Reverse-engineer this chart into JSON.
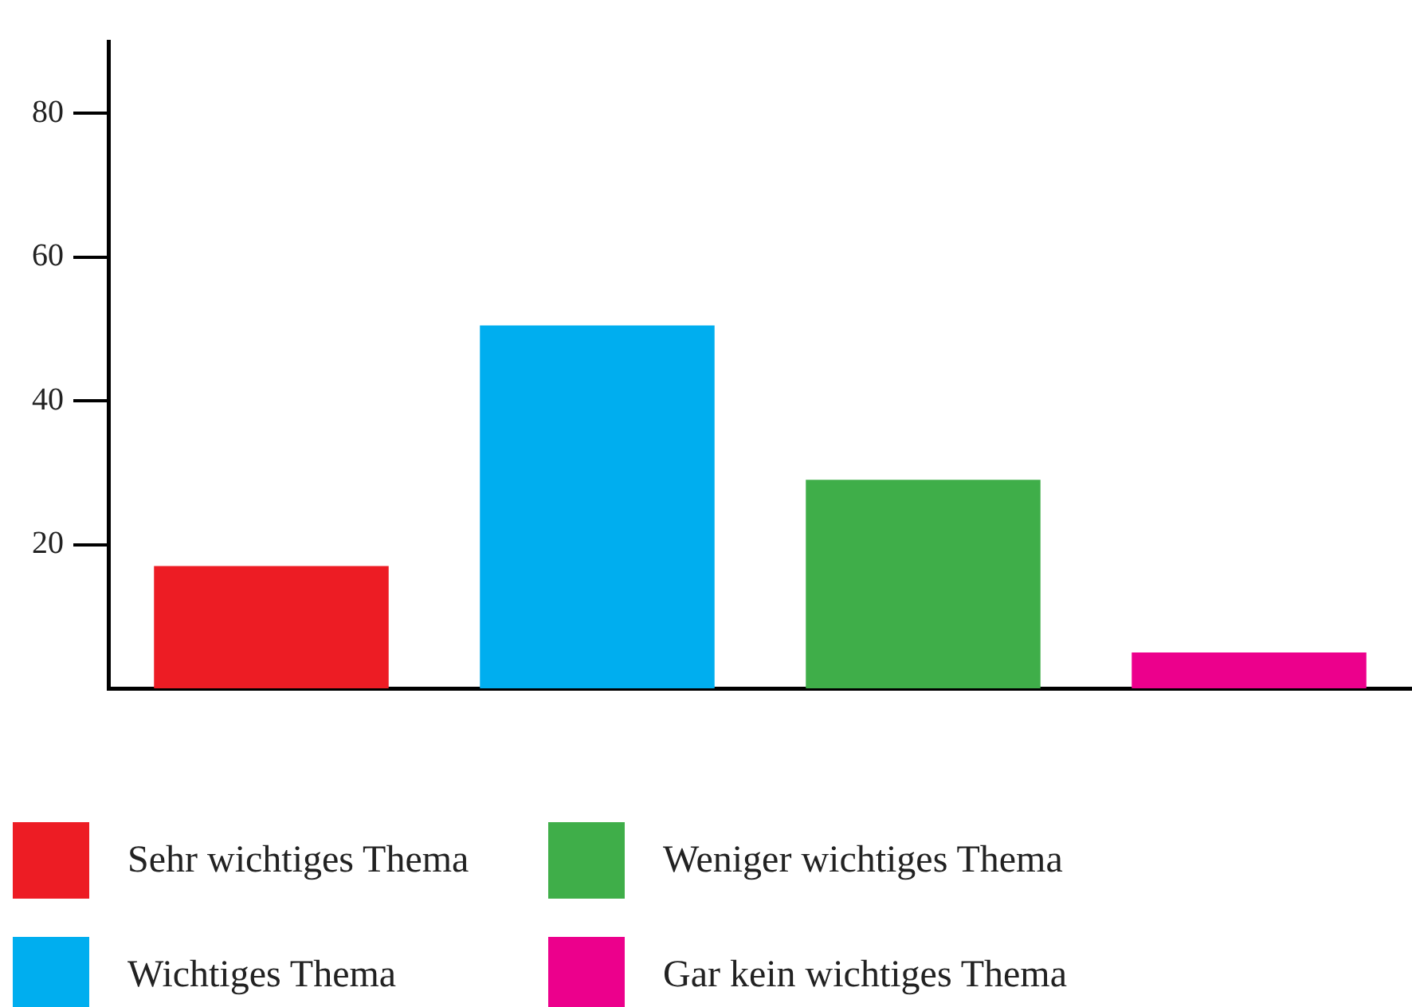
{
  "chart_data": {
    "type": "bar",
    "categories": [
      null,
      null,
      null,
      null
    ],
    "series": [
      {
        "name": "Sehr wichtiges Thema",
        "color": "#ed1c24",
        "values": [
          17,
          null,
          null,
          null
        ]
      },
      {
        "name": "Wichtiges Thema",
        "color": "#00aeef",
        "values": [
          null,
          50.5,
          null,
          null
        ]
      },
      {
        "name": "Weniger wichtiges Thema",
        "color": "#3fae49",
        "values": [
          null,
          null,
          29,
          null
        ]
      },
      {
        "name": "Gar kein wichtiges Thema",
        "color": "#ec008c",
        "values": [
          null,
          null,
          null,
          5
        ]
      }
    ],
    "ylim": [
      0,
      90
    ],
    "yticks": [
      20,
      40,
      60,
      80
    ],
    "grid": false,
    "legend": "bottom",
    "tick_labels": "y"
  }
}
